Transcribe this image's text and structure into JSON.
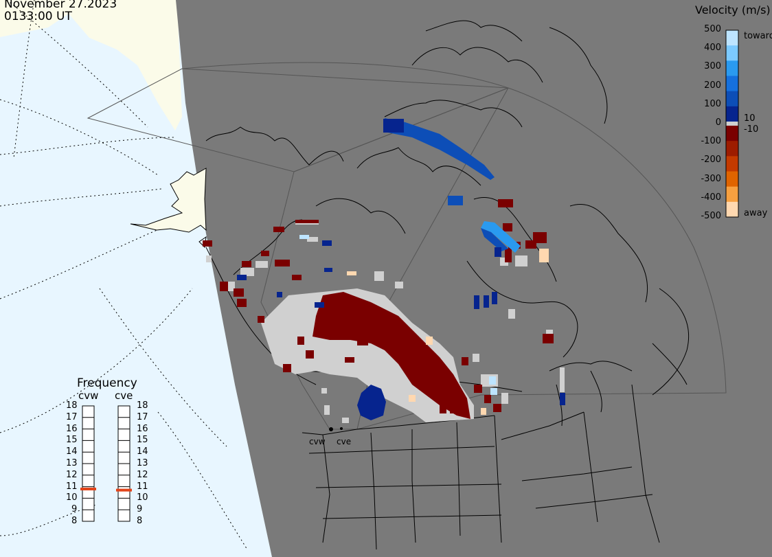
{
  "header": {
    "date": "November 27.2023",
    "time": "0133:00 UT"
  },
  "colors": {
    "ocean": "#e8f6ff",
    "land_far": "#fbfbe9",
    "night": "#7a7a7a",
    "ground_scatter": "#d0d0d0",
    "freq_marker": "#e2441a"
  },
  "velocity_legend": {
    "title": "Velocity (m/s)",
    "ticks": [
      "500",
      "400",
      "300",
      "200",
      "100",
      "0",
      "-100",
      "-200",
      "-300",
      "-400",
      "-500"
    ],
    "inner_ticks": [
      "10",
      "-10"
    ],
    "toward_label": "toward",
    "away_label": "away",
    "colors_toward": [
      "#bde4ff",
      "#7ccaff",
      "#2a9aef",
      "#1570dd",
      "#0d4eb7",
      "#06248e"
    ],
    "colors_away": [
      "#7a0000",
      "#9d1c00",
      "#c43a00",
      "#e06400",
      "#f7a040",
      "#ffd8b0"
    ]
  },
  "frequency_panel": {
    "title": "Frequency",
    "radars": [
      {
        "name": "cvw",
        "value": 10.8
      },
      {
        "name": "cve",
        "value": 10.7
      }
    ],
    "scale": [
      "18",
      "17",
      "16",
      "15",
      "14",
      "13",
      "12",
      "11",
      "10",
      "9",
      "8"
    ]
  },
  "radar_sites": [
    "cvw",
    "cve"
  ],
  "icons": {
    "site_marker": "circle-dot-icon"
  }
}
